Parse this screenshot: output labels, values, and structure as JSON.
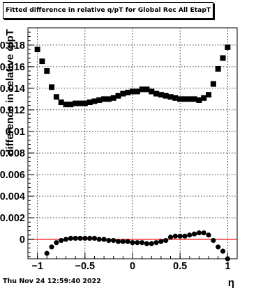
{
  "chart_data": {
    "type": "scatter",
    "title": "Fitted difference in relative q/pT for Global Rec All EtapT",
    "xlabel": "η",
    "ylabel": "difference in relative q/pT",
    "xlim": [
      -1.1,
      1.1
    ],
    "ylim": [
      -0.0018,
      0.0196
    ],
    "x_ticks": [
      {
        "value": -1,
        "label": "−1"
      },
      {
        "value": -0.5,
        "label": "−0.5"
      },
      {
        "value": 0,
        "label": "0"
      },
      {
        "value": 0.5,
        "label": "0.5"
      },
      {
        "value": 1,
        "label": "1"
      }
    ],
    "y_ticks": [
      {
        "value": 0,
        "label": "0"
      },
      {
        "value": 0.002,
        "label": "0.002"
      },
      {
        "value": 0.004,
        "label": "0.004"
      },
      {
        "value": 0.006,
        "label": "0.006"
      },
      {
        "value": 0.008,
        "label": "0.008"
      },
      {
        "value": 0.01,
        "label": "0.01"
      },
      {
        "value": 0.012,
        "label": "0.012"
      },
      {
        "value": 0.014,
        "label": "0.014"
      },
      {
        "value": 0.016,
        "label": "0.016"
      },
      {
        "value": 0.018,
        "label": "0.018"
      }
    ],
    "grid": true,
    "reference_line": {
      "y": 0,
      "color": "#ff0000"
    },
    "series": [
      {
        "marker": "square",
        "color": "#000000",
        "x": [
          -1.0,
          -0.95,
          -0.9,
          -0.85,
          -0.8,
          -0.75,
          -0.7,
          -0.65,
          -0.6,
          -0.55,
          -0.5,
          -0.45,
          -0.4,
          -0.35,
          -0.3,
          -0.25,
          -0.2,
          -0.15,
          -0.1,
          -0.05,
          0.0,
          0.05,
          0.1,
          0.15,
          0.2,
          0.25,
          0.3,
          0.35,
          0.4,
          0.45,
          0.5,
          0.55,
          0.6,
          0.65,
          0.7,
          0.75,
          0.8,
          0.85,
          0.9,
          0.95,
          1.0
        ],
        "y": [
          0.0176,
          0.0165,
          0.0156,
          0.0141,
          0.0132,
          0.0127,
          0.0125,
          0.0125,
          0.0126,
          0.0126,
          0.0126,
          0.0127,
          0.0128,
          0.0129,
          0.013,
          0.013,
          0.0131,
          0.0133,
          0.0135,
          0.0136,
          0.0137,
          0.0137,
          0.0139,
          0.0139,
          0.0137,
          0.0135,
          0.0134,
          0.0133,
          0.0132,
          0.0131,
          0.013,
          0.013,
          0.013,
          0.013,
          0.0129,
          0.0131,
          0.0134,
          0.0144,
          0.0158,
          0.0168,
          0.0178
        ]
      },
      {
        "marker": "circle",
        "color": "#000000",
        "x": [
          -0.9,
          -0.85,
          -0.8,
          -0.75,
          -0.7,
          -0.65,
          -0.6,
          -0.55,
          -0.5,
          -0.45,
          -0.4,
          -0.35,
          -0.3,
          -0.25,
          -0.2,
          -0.15,
          -0.1,
          -0.05,
          0.0,
          0.05,
          0.1,
          0.15,
          0.2,
          0.25,
          0.3,
          0.35,
          0.4,
          0.45,
          0.5,
          0.55,
          0.6,
          0.65,
          0.7,
          0.75,
          0.8,
          0.85,
          0.9,
          0.95,
          1.0
        ],
        "y": [
          -0.0013,
          -0.0007,
          -0.0003,
          -0.0001,
          0.0,
          0.0001,
          0.0001,
          0.0001,
          0.0001,
          0.0001,
          0.0001,
          0.0,
          0.0,
          -0.0001,
          -0.0001,
          -0.0002,
          -0.0002,
          -0.0002,
          -0.0003,
          -0.0003,
          -0.0003,
          -0.0004,
          -0.0004,
          -0.0003,
          -0.0002,
          -0.0001,
          0.0002,
          0.0003,
          0.0003,
          0.0003,
          0.0004,
          0.0005,
          0.0006,
          0.0006,
          0.0004,
          -0.0001,
          -0.0007,
          -0.0011,
          -0.0018
        ]
      }
    ]
  },
  "footer": {
    "timestamp": "Thu Nov 24 12:59:40 2022"
  }
}
